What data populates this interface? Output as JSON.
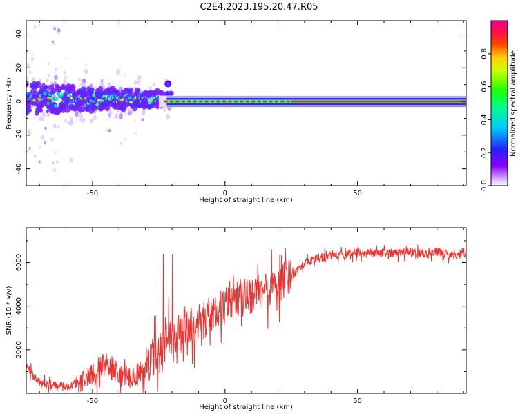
{
  "title": "C2E4.2023.195.20.47.R05",
  "chart_data": [
    {
      "type": "heatmap",
      "title": "C2E4.2023.195.20.47.R05",
      "xlabel": "Height of straight line (km)",
      "ylabel": "Frequency (Hz)",
      "xlim": [
        -75,
        91
      ],
      "ylim": [
        -50,
        48
      ],
      "xticks": [
        -50,
        0,
        50
      ],
      "yticks": [
        -40,
        -20,
        0,
        20,
        40
      ],
      "ytick_labels": [
        "-40",
        "-20",
        "0",
        "20",
        "40"
      ],
      "colorbar": {
        "label": "Normalized spectral amplitude",
        "range": [
          0.0,
          1.0
        ],
        "ticks": [
          0.0,
          0.2,
          0.4,
          0.6,
          0.8
        ],
        "tick_labels": [
          "0.0",
          "0.2",
          "0.4",
          "0.6",
          "0.8"
        ],
        "colormap": "rainbow (white-violet-blue-cyan-green-yellow-red-magenta)"
      },
      "description_values": {
        "carrier_frequency_hz": 0,
        "spread_region_x_range_km": [
          -75,
          -20
        ],
        "spread_half_width_hz": [
          10,
          2
        ],
        "stable_region_x_range_km": [
          -20,
          91
        ]
      },
      "grid": false
    },
    {
      "type": "line",
      "xlabel": "Height of straight line (km)",
      "ylabel": "SNR (10 * v/v)",
      "xlim": [
        -75,
        91
      ],
      "ylim": [
        0,
        7600
      ],
      "xticks": [
        -50,
        0,
        50
      ],
      "yticks": [
        2000,
        4000,
        6000
      ],
      "ytick_labels": [
        "2000",
        "4000",
        "6000"
      ],
      "series_color": "#ee3333",
      "trend": {
        "x": [
          -75,
          -70,
          -65,
          -60,
          -55,
          -50,
          -45,
          -40,
          -35,
          -30,
          -25,
          -20,
          -15,
          -10,
          -5,
          0,
          5,
          10,
          15,
          20,
          25,
          30,
          35,
          40,
          45,
          50,
          55,
          60,
          65,
          70,
          75,
          80,
          85,
          91
        ],
        "y": [
          1200,
          500,
          350,
          300,
          450,
          900,
          1400,
          900,
          600,
          1200,
          2000,
          2600,
          2900,
          3200,
          3600,
          4000,
          4300,
          4500,
          4700,
          5000,
          5400,
          6000,
          6200,
          6300,
          6400,
          6450,
          6400,
          6450,
          6450,
          6500,
          6400,
          6500,
          6350,
          6400
        ]
      },
      "grid": false
    }
  ]
}
